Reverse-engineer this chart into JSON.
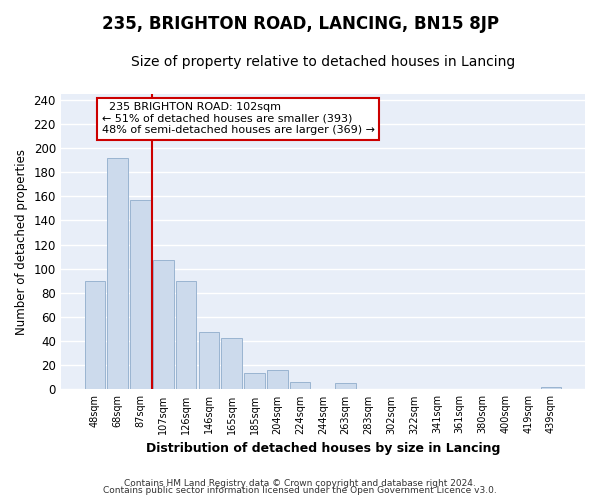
{
  "title": "235, BRIGHTON ROAD, LANCING, BN15 8JP",
  "subtitle": "Size of property relative to detached houses in Lancing",
  "xlabel": "Distribution of detached houses by size in Lancing",
  "ylabel": "Number of detached properties",
  "footnote1": "Contains HM Land Registry data © Crown copyright and database right 2024.",
  "footnote2": "Contains public sector information licensed under the Open Government Licence v3.0.",
  "bar_labels": [
    "48sqm",
    "68sqm",
    "87sqm",
    "107sqm",
    "126sqm",
    "146sqm",
    "165sqm",
    "185sqm",
    "204sqm",
    "224sqm",
    "244sqm",
    "263sqm",
    "283sqm",
    "302sqm",
    "322sqm",
    "341sqm",
    "361sqm",
    "380sqm",
    "400sqm",
    "419sqm",
    "439sqm"
  ],
  "bar_values": [
    90,
    192,
    157,
    107,
    90,
    48,
    43,
    14,
    16,
    6,
    0,
    5,
    0,
    0,
    0,
    0,
    0,
    0,
    0,
    0,
    2
  ],
  "bar_color": "#ccdaec",
  "bar_edge_color": "#9ab4d0",
  "vline_color": "#cc0000",
  "annotation_title": "235 BRIGHTON ROAD: 102sqm",
  "annotation_line1": "← 51% of detached houses are smaller (393)",
  "annotation_line2": "48% of semi-detached houses are larger (369) →",
  "annotation_box_color": "#ffffff",
  "annotation_box_edge": "#cc0000",
  "ylim": [
    0,
    245
  ],
  "yticks": [
    0,
    20,
    40,
    60,
    80,
    100,
    120,
    140,
    160,
    180,
    200,
    220,
    240
  ],
  "background_color": "#ffffff",
  "plot_bg_color": "#e8eef8",
  "title_fontsize": 12,
  "subtitle_fontsize": 10,
  "grid_color": "#ffffff",
  "figsize": [
    6.0,
    5.0
  ],
  "dpi": 100
}
